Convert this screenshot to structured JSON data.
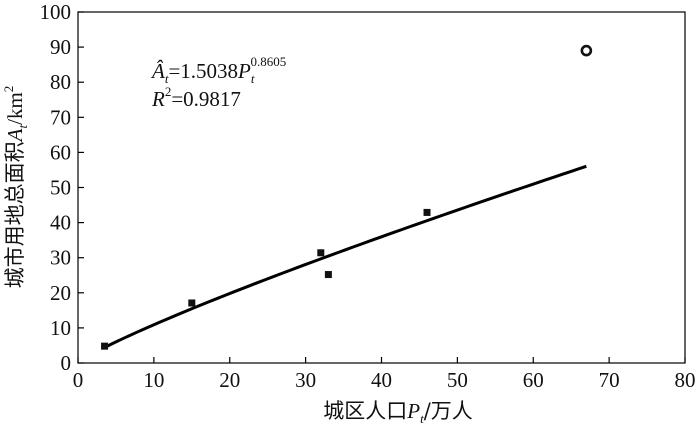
{
  "chart_data": {
    "type": "scatter",
    "xlabel_parts": {
      "prefix": "城区人口",
      "var": "P",
      "sub": "t",
      "suffix": "/万人"
    },
    "ylabel_parts": {
      "prefix": "城市用地总面积",
      "var": "A",
      "sub": "t",
      "suffix": "/km",
      "sup": "2"
    },
    "xlim": [
      0,
      80
    ],
    "ylim": [
      0,
      100
    ],
    "xticks": [
      "0",
      "10",
      "20",
      "30",
      "40",
      "50",
      "60",
      "70",
      "80"
    ],
    "yticks": [
      "0",
      "10",
      "20",
      "30",
      "40",
      "50",
      "60",
      "70",
      "80",
      "90",
      "100"
    ],
    "points": [
      {
        "x": 3.5,
        "y": 4.8
      },
      {
        "x": 15.0,
        "y": 17.1
      },
      {
        "x": 32.0,
        "y": 31.4
      },
      {
        "x": 33.0,
        "y": 25.2
      },
      {
        "x": 46.0,
        "y": 42.9
      }
    ],
    "outlier": {
      "x": 67.0,
      "y": 89.0
    },
    "fit": {
      "coef": 1.5038,
      "exponent": 0.8605,
      "x_start": 3.5,
      "x_end": 67.0
    },
    "annotation": {
      "eq_lhs_var": "Â",
      "eq_lhs_sub": "t",
      "eq_mid": "=1.5038",
      "eq_var": "P",
      "eq_var_sub": "t",
      "eq_var_sup": "0.8605",
      "r2_var": "R",
      "r2_sup": "2",
      "r2_val": "=0.9817"
    },
    "grid": false
  }
}
